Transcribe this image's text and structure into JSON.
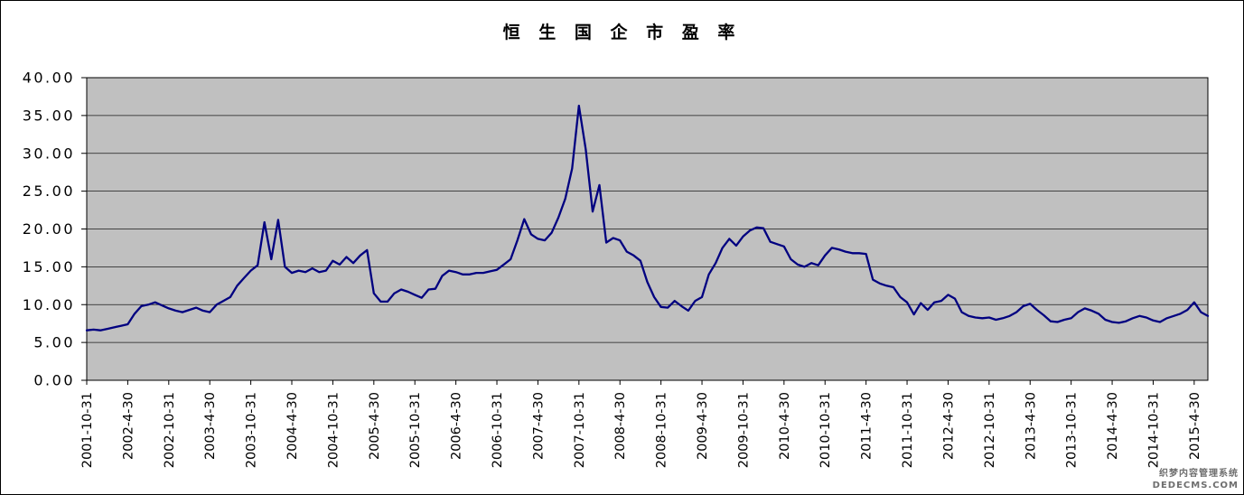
{
  "title": "恒 生 国 企 市 盈 率",
  "watermark": {
    "line1": "织梦内容管理系统",
    "line2": "DEDECMS.COM"
  },
  "chart_data": {
    "type": "line",
    "title": "恒 生 国 企 市 盈 率",
    "series": [
      {
        "name": "恒生国企市盈率",
        "color": "#000080"
      }
    ],
    "start_month": "2001-10",
    "frequency": "monthly",
    "values": [
      6.6,
      6.7,
      6.6,
      6.8,
      7.0,
      7.2,
      7.4,
      8.8,
      9.8,
      10.0,
      10.3,
      9.9,
      9.5,
      9.2,
      9.0,
      9.3,
      9.6,
      9.2,
      9.0,
      10.0,
      10.5,
      11.0,
      12.5,
      13.5,
      14.5,
      15.2,
      20.9,
      16.0,
      21.2,
      15.0,
      14.2,
      14.5,
      14.3,
      14.8,
      14.3,
      14.5,
      15.8,
      15.3,
      16.3,
      15.5,
      16.5,
      17.2,
      11.5,
      10.4,
      10.4,
      11.5,
      12.0,
      11.7,
      11.3,
      10.9,
      12.0,
      12.1,
      13.8,
      14.5,
      14.3,
      14.0,
      14.0,
      14.2,
      14.2,
      14.4,
      14.6,
      15.3,
      16.0,
      18.5,
      21.3,
      19.3,
      18.7,
      18.5,
      19.5,
      21.5,
      24.0,
      28.0,
      36.3,
      30.5,
      22.3,
      25.8,
      18.2,
      18.8,
      18.5,
      17.0,
      16.5,
      15.8,
      13.0,
      11.0,
      9.7,
      9.6,
      10.5,
      9.8,
      9.2,
      10.5,
      11.0,
      14.0,
      15.5,
      17.5,
      18.7,
      17.8,
      19.0,
      19.8,
      20.2,
      20.1,
      18.3,
      18.0,
      17.7,
      16.0,
      15.3,
      15.0,
      15.5,
      15.2,
      16.5,
      17.5,
      17.3,
      17.0,
      16.8,
      16.8,
      16.7,
      13.3,
      12.8,
      12.5,
      12.3,
      11.0,
      10.3,
      8.7,
      10.2,
      9.3,
      10.3,
      10.5,
      11.3,
      10.8,
      9.0,
      8.5,
      8.3,
      8.2,
      8.3,
      8.0,
      8.2,
      8.5,
      9.0,
      9.8,
      10.1,
      9.3,
      8.6,
      7.8,
      7.7,
      8.0,
      8.2,
      9.0,
      9.5,
      9.2,
      8.8,
      8.0,
      7.7,
      7.6,
      7.8,
      8.2,
      8.5,
      8.3,
      7.9,
      7.7,
      8.2,
      8.5,
      8.8,
      9.3,
      10.3,
      9.0,
      8.5
    ],
    "ylim": [
      0,
      40
    ],
    "y_tick_values": [
      0,
      5,
      10,
      15,
      20,
      25,
      30,
      35,
      40
    ],
    "y_ticks": [
      "0.00",
      "5.00",
      "10.00",
      "15.00",
      "20.00",
      "25.00",
      "30.00",
      "35.00",
      "40.00"
    ],
    "x_tick_labels": [
      "2001-10-31",
      "2002-4-30",
      "2002-10-31",
      "2003-4-30",
      "2003-10-31",
      "2004-4-30",
      "2004-10-31",
      "2005-4-30",
      "2005-10-31",
      "2006-4-30",
      "2006-10-31",
      "2007-4-30",
      "2007-10-31",
      "2008-4-30",
      "2008-10-31",
      "2009-4-30",
      "2009-10-31",
      "2010-4-30",
      "2010-10-31",
      "2011-4-30",
      "2011-10-31",
      "2012-4-30",
      "2012-10-31",
      "2013-4-30",
      "2013-10-31",
      "2014-4-30",
      "2014-10-31",
      "2015-4-30"
    ],
    "x_tick_every": 6,
    "plot_bg": "#c0c0c0",
    "grid": true,
    "legend": "none"
  }
}
